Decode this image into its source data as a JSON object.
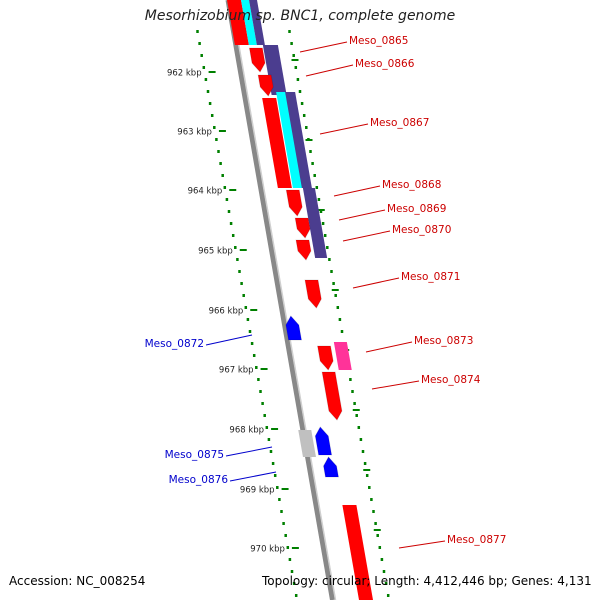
{
  "title": "Mesorhizobium sp. BNC1, complete genome",
  "footer": {
    "accession": "Accession: NC_008254",
    "summary": "Topology: circular; Length: 4,412,446 bp; Genes: 4,131"
  },
  "colors": {
    "forward_cds": "#ff0000",
    "reverse_cds": "#0000ff",
    "forward_label": "#cc0000",
    "reverse_label": "#0000cc",
    "cyan_feature": "#00ffff",
    "purple_feature": "#4b3d8f",
    "pink_feature": "#ff3399",
    "grey_feature": "#c0c0c0",
    "backbone": "#888888",
    "tick": "#008000"
  },
  "ticks": [
    {
      "label": "962 kbp"
    },
    {
      "label": "963 kbp"
    },
    {
      "label": "964 kbp"
    },
    {
      "label": "965 kbp"
    },
    {
      "label": "966 kbp"
    },
    {
      "label": "967 kbp"
    },
    {
      "label": "968 kbp"
    },
    {
      "label": "969 kbp"
    },
    {
      "label": "970 kbp"
    }
  ],
  "genes": [
    {
      "name": "Meso_0865",
      "strand": "forward"
    },
    {
      "name": "Meso_0866",
      "strand": "forward"
    },
    {
      "name": "Meso_0867",
      "strand": "forward"
    },
    {
      "name": "Meso_0868",
      "strand": "forward"
    },
    {
      "name": "Meso_0869",
      "strand": "forward"
    },
    {
      "name": "Meso_0870",
      "strand": "forward"
    },
    {
      "name": "Meso_0871",
      "strand": "forward"
    },
    {
      "name": "Meso_0872",
      "strand": "reverse"
    },
    {
      "name": "Meso_0873",
      "strand": "forward"
    },
    {
      "name": "Meso_0874",
      "strand": "forward"
    },
    {
      "name": "Meso_0875",
      "strand": "reverse"
    },
    {
      "name": "Meso_0876",
      "strand": "reverse"
    },
    {
      "name": "Meso_0877",
      "strand": "forward"
    }
  ]
}
